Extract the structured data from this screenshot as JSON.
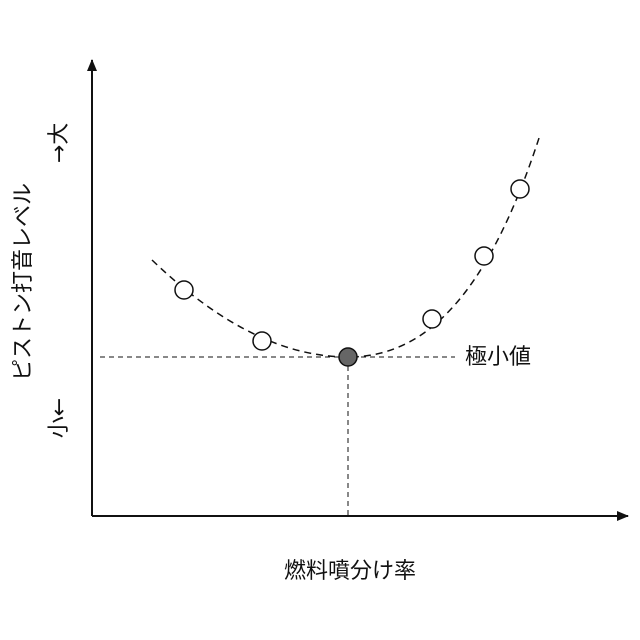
{
  "y_axis": {
    "label": "ピストン打音レベル",
    "low": "小←",
    "high": "→大"
  },
  "x_axis": {
    "label": "燃料噴分け率"
  },
  "annotation": "極小値"
}
